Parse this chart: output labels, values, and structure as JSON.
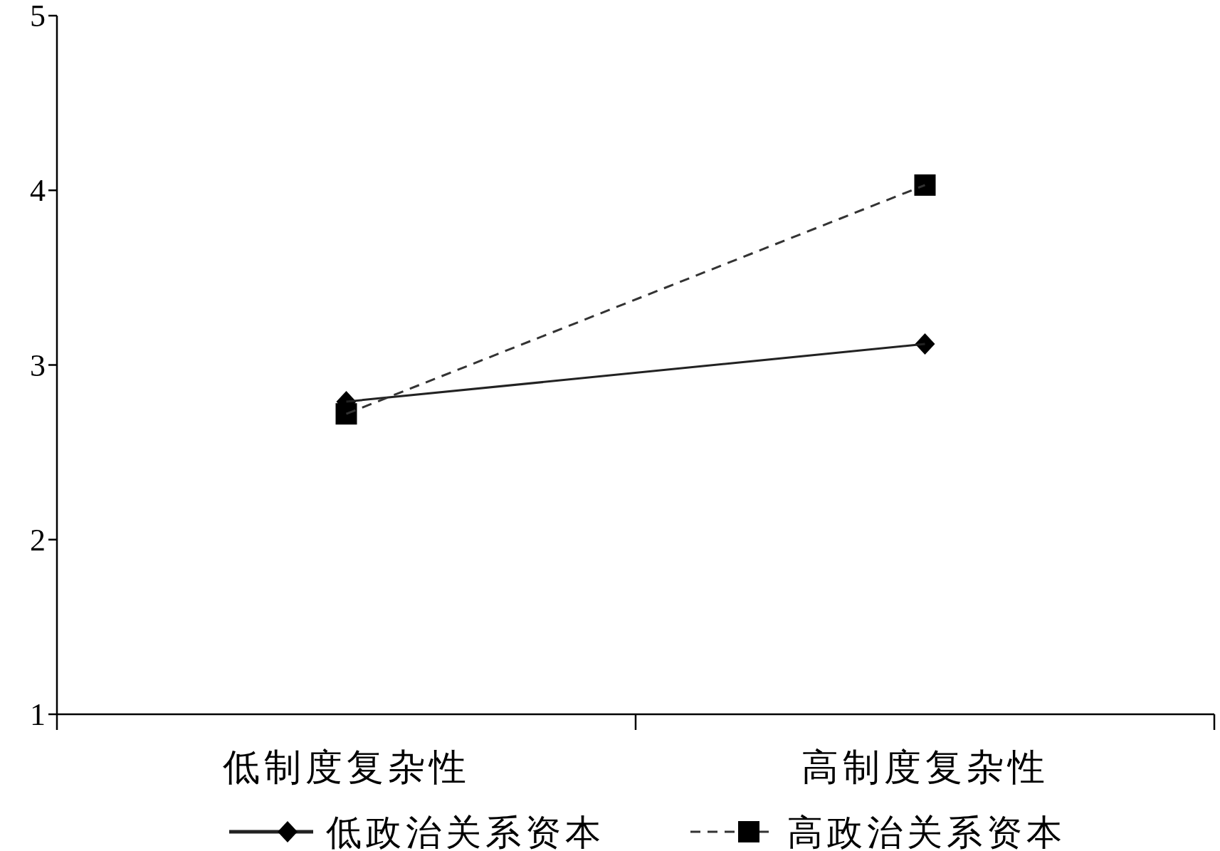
{
  "chart_data": {
    "type": "line",
    "categories": [
      "低制度复杂性",
      "高制度复杂性"
    ],
    "series": [
      {
        "name": "低政治关系资本",
        "color": "#222222",
        "values": [
          2.79,
          3.12
        ],
        "marker": "diamond",
        "line_style": "solid"
      },
      {
        "name": "高政治关系资本",
        "color": "#333333",
        "values": [
          2.72,
          4.03
        ],
        "marker": "square",
        "line_style": "dashed"
      }
    ],
    "ylim": [
      1,
      5
    ],
    "yticks": [
      1,
      2,
      3,
      4,
      5
    ],
    "legend": "bottom"
  }
}
